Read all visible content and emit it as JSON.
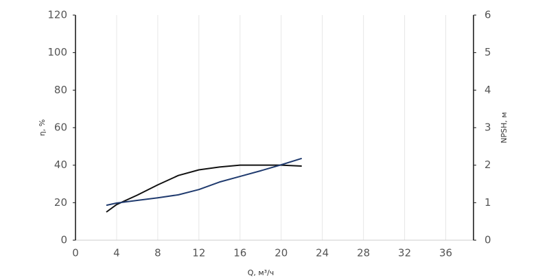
{
  "chart_data": {
    "type": "line",
    "x_label": "Q, м³/ч",
    "y_label": "η, %",
    "y2_label": "NPSH, м",
    "x": [
      3,
      4,
      6,
      8,
      10,
      12,
      14,
      16,
      18,
      20,
      22
    ],
    "series": [
      {
        "name": "η",
        "color": "#111111",
        "values": [
          15,
          19,
          24,
          29.5,
          34.5,
          37.5,
          39,
          40,
          40,
          40,
          39.5
        ]
      },
      {
        "name": "NPSH",
        "color": "#1f3a6e",
        "axis": "y2",
        "values": [
          0.93,
          0.99,
          1.06,
          1.13,
          1.21,
          1.35,
          1.55,
          1.7,
          1.85,
          2.01,
          2.18
        ]
      }
    ],
    "xlim": [
      0,
      38.7
    ],
    "xticks": [
      0,
      4,
      8,
      12,
      16,
      20,
      24,
      28,
      32,
      36
    ],
    "ylim": [
      0,
      120
    ],
    "yticks": [
      0,
      20,
      40,
      60,
      80,
      100,
      120
    ],
    "y2lim": [
      0,
      6
    ],
    "y2ticks": [
      0,
      1,
      2,
      3,
      4,
      5,
      6
    ],
    "grid": true
  }
}
